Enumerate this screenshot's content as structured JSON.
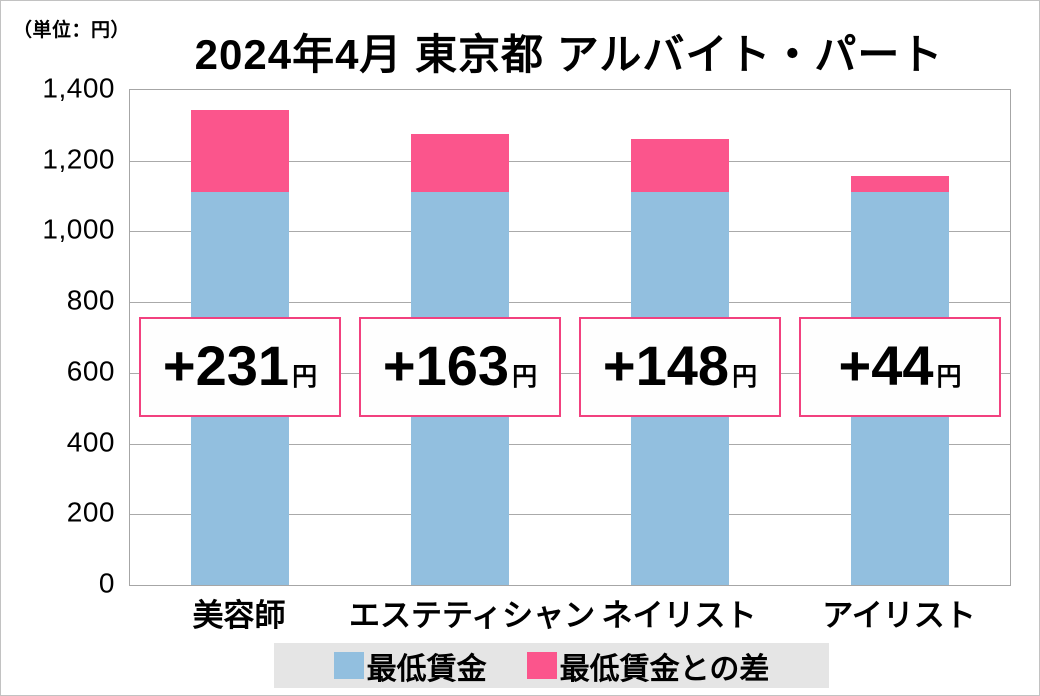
{
  "unit_label": "（単位：円）",
  "chart_data": {
    "type": "bar",
    "stacked": true,
    "title": "2024年4月 東京都 アルバイト・パート",
    "unit": "円",
    "categories": [
      "美容師",
      "エステティシャン",
      "ネイリスト",
      "アイリスト"
    ],
    "series": [
      {
        "name": "最低賃金",
        "color": "#92BFDF",
        "values": [
          1113,
          1113,
          1113,
          1113
        ]
      },
      {
        "name": "最低賃金との差",
        "color": "#FB558C",
        "values": [
          231,
          163,
          148,
          44
        ]
      }
    ],
    "totals": [
      1344,
      1276,
      1261,
      1157
    ],
    "annotations": [
      {
        "value": "+231",
        "unit": "円"
      },
      {
        "value": "+163",
        "unit": "円"
      },
      {
        "value": "+148",
        "unit": "円"
      },
      {
        "value": "+44",
        "unit": "円"
      }
    ],
    "y_ticks": [
      {
        "value": 1400,
        "label": "1,400"
      },
      {
        "value": 1200,
        "label": "1,200"
      },
      {
        "value": 1000,
        "label": "1,000"
      },
      {
        "value": 800,
        "label": "800"
      },
      {
        "value": 600,
        "label": "600"
      },
      {
        "value": 400,
        "label": "400"
      },
      {
        "value": 200,
        "label": "200"
      },
      {
        "value": 0,
        "label": "0"
      }
    ],
    "ylim": [
      0,
      1400
    ],
    "grid": true,
    "legend_position": "bottom",
    "colors": {
      "annotation_border": "#F2417F",
      "annotation_background": "#FEFEFE",
      "legend_background": "#E5E5E5",
      "gridline": "#AAAAAA",
      "plot_border": "#A6A6A6"
    }
  }
}
